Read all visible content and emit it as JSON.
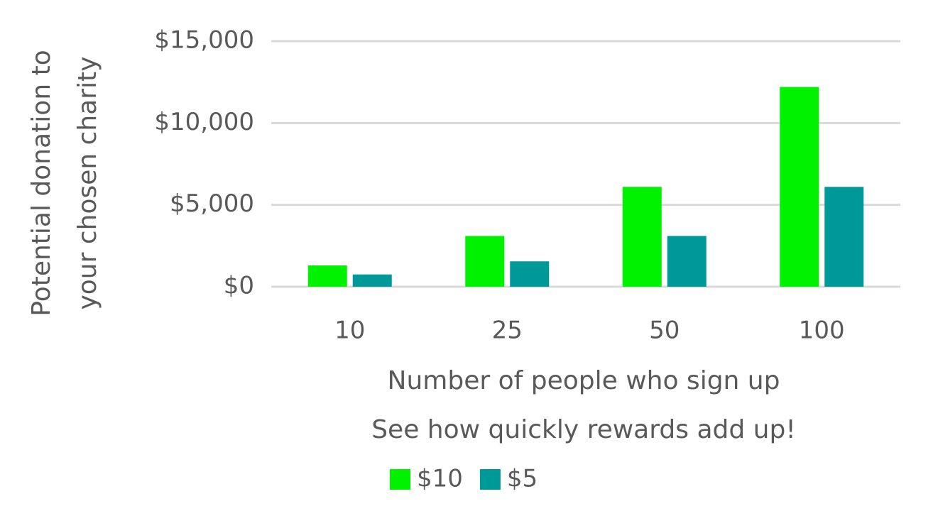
{
  "chart_data": {
    "type": "bar",
    "subtitle": "See how quickly rewards add up!",
    "xlabel": "Number of people who sign up",
    "ylabel": [
      "Potential donation to",
      "your chosen charity"
    ],
    "categories": [
      "10",
      "25",
      "50",
      "100"
    ],
    "series": [
      {
        "name": "$10",
        "color": "#00f200",
        "values": [
          1300,
          3100,
          6100,
          12200
        ]
      },
      {
        "name": "$5",
        "color": "#009999",
        "values": [
          750,
          1550,
          3100,
          6100
        ]
      }
    ],
    "ylim": [
      0,
      15000
    ],
    "yticks": [
      {
        "value": 0,
        "label": "$0"
      },
      {
        "value": 5000,
        "label": "$5,000"
      },
      {
        "value": 10000,
        "label": "$10,000"
      },
      {
        "value": 15000,
        "label": "$15,000"
      }
    ],
    "grid": true
  }
}
